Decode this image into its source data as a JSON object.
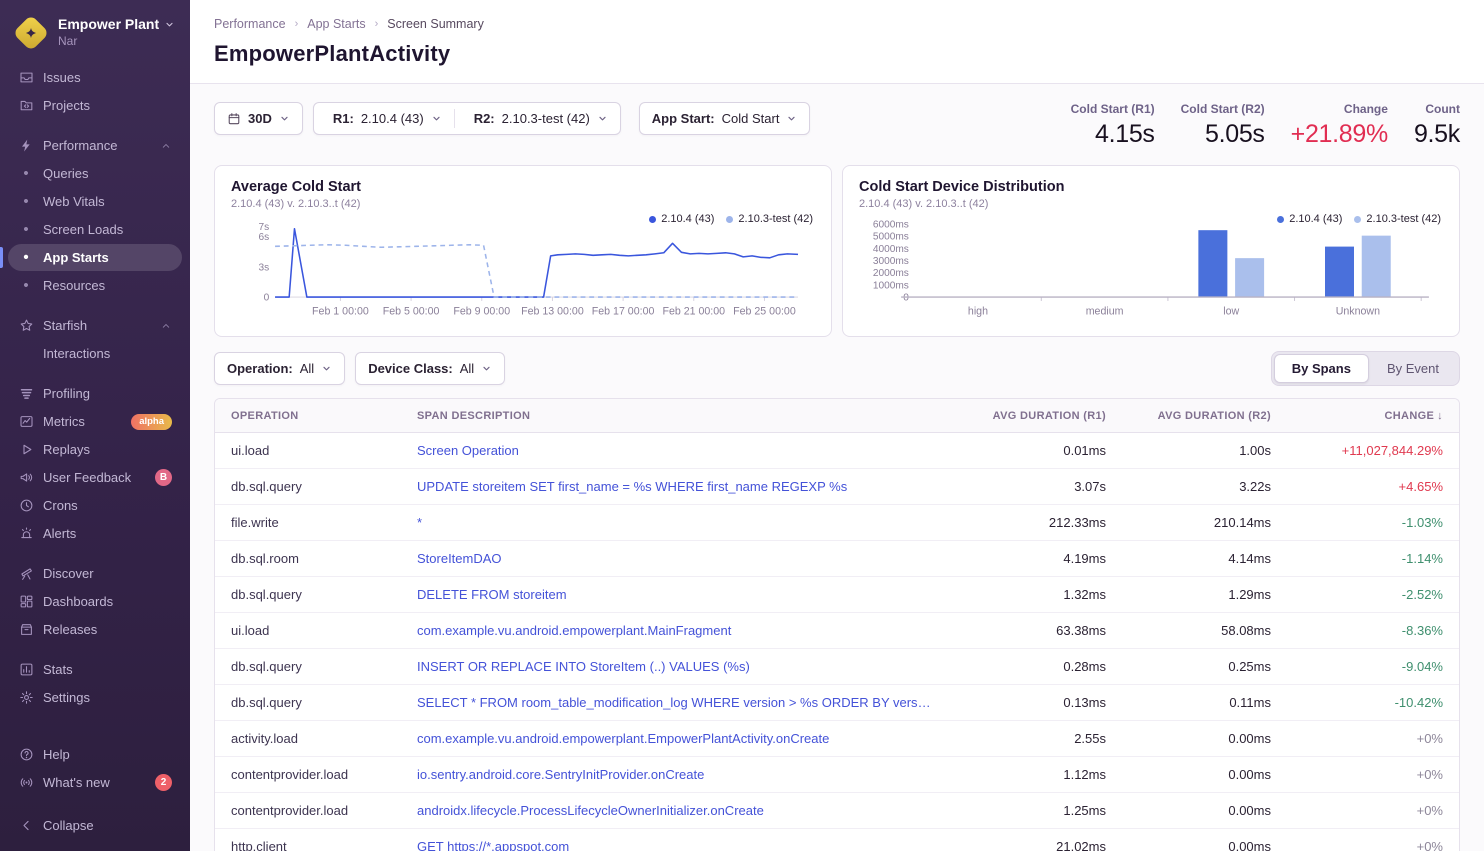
{
  "sidebar": {
    "org_name": "Empower Plant",
    "project_name": "Nar",
    "sections": [
      {
        "items": [
          {
            "id": "issues",
            "label": "Issues",
            "icon": "issues"
          },
          {
            "id": "projects",
            "label": "Projects",
            "icon": "projects"
          }
        ]
      },
      {
        "items": [
          {
            "id": "performance",
            "label": "Performance",
            "icon": "lightning",
            "chevron": "up"
          },
          {
            "id": "queries",
            "label": "Queries",
            "bullet": true
          },
          {
            "id": "web-vitals",
            "label": "Web Vitals",
            "bullet": true
          },
          {
            "id": "screen-loads",
            "label": "Screen Loads",
            "bullet": true
          },
          {
            "id": "app-starts",
            "label": "App Starts",
            "bullet": true,
            "active": true
          },
          {
            "id": "resources",
            "label": "Resources",
            "bullet": true
          }
        ]
      },
      {
        "items": [
          {
            "id": "starfish",
            "label": "Starfish",
            "icon": "star",
            "chevron": "up"
          },
          {
            "id": "interactions",
            "label": "Interactions",
            "indent": true
          }
        ]
      },
      {
        "items": [
          {
            "id": "profiling",
            "label": "Profiling",
            "icon": "profiling"
          },
          {
            "id": "metrics",
            "label": "Metrics",
            "icon": "metrics",
            "badge": {
              "text": "alpha",
              "type": "alpha"
            }
          },
          {
            "id": "replays",
            "label": "Replays",
            "icon": "play"
          },
          {
            "id": "user-feedback",
            "label": "User Feedback",
            "icon": "megaphone",
            "badge": {
              "text": "B",
              "type": "pink"
            }
          },
          {
            "id": "crons",
            "label": "Crons",
            "icon": "clock"
          },
          {
            "id": "alerts",
            "label": "Alerts",
            "icon": "siren"
          }
        ]
      },
      {
        "items": [
          {
            "id": "discover",
            "label": "Discover",
            "icon": "telescope"
          },
          {
            "id": "dashboards",
            "label": "Dashboards",
            "icon": "dashboards"
          },
          {
            "id": "releases",
            "label": "Releases",
            "icon": "releases"
          }
        ]
      },
      {
        "items": [
          {
            "id": "stats",
            "label": "Stats",
            "icon": "stats"
          },
          {
            "id": "settings",
            "label": "Settings",
            "icon": "gear"
          }
        ]
      }
    ],
    "footer_items": [
      {
        "id": "help",
        "label": "Help",
        "icon": "help"
      },
      {
        "id": "whats-new",
        "label": "What's new",
        "icon": "broadcast",
        "badge": {
          "text": "2",
          "type": "red"
        }
      },
      {
        "id": "collapse",
        "label": "Collapse",
        "icon": "chevron-left",
        "gap_before": true
      }
    ]
  },
  "breadcrumb": [
    "Performance",
    "App Starts",
    "Screen Summary"
  ],
  "page_title": "EmpowerPlantActivity",
  "filters": {
    "date_range": {
      "label": "30D"
    },
    "release1": {
      "label": "R1:",
      "value": "2.10.4 (43)"
    },
    "release2": {
      "label": "R2:",
      "value": "2.10.3-test (42)"
    },
    "app_start": {
      "label": "App Start:",
      "value": "Cold Start"
    },
    "operation": {
      "label": "Operation:",
      "value": "All"
    },
    "device_class": {
      "label": "Device Class:",
      "value": "All"
    }
  },
  "stats": [
    {
      "label": "Cold Start (R1)",
      "value": "4.15s",
      "color": "default"
    },
    {
      "label": "Cold Start (R2)",
      "value": "5.05s",
      "color": "default"
    },
    {
      "label": "Change",
      "value": "+21.89%",
      "color": "red"
    },
    {
      "label": "Count",
      "value": "9.5k",
      "color": "default"
    }
  ],
  "toggle": {
    "options": [
      "By Spans",
      "By Event"
    ],
    "active": 0
  },
  "chart_data": [
    {
      "type": "line",
      "title": "Average Cold Start",
      "subtitle": "2.10.4 (43) v. 2.10.3..t (42)",
      "legend": [
        {
          "name": "2.10.4 (43)",
          "color": "#3a56dd"
        },
        {
          "name": "2.10.3-test (42)",
          "color": "#9db4ea"
        }
      ],
      "ymax": 7.5,
      "yticks": [
        {
          "v": 0,
          "label": "0"
        },
        {
          "v": 3,
          "label": "3s"
        },
        {
          "v": 6,
          "label": "6s"
        },
        {
          "v": 7,
          "label": "7s"
        }
      ],
      "xdomain": [
        0,
        29.6
      ],
      "xticks": [
        {
          "v": 3.7,
          "label": "Feb 1 00:00"
        },
        {
          "v": 7.7,
          "label": "Feb 5 00:00"
        },
        {
          "v": 11.7,
          "label": "Feb 9 00:00"
        },
        {
          "v": 15.7,
          "label": "Feb 13 00:00"
        },
        {
          "v": 19.7,
          "label": "Feb 17 00:00"
        },
        {
          "v": 23.7,
          "label": "Feb 21 00:00"
        },
        {
          "v": 27.7,
          "label": "Feb 25 00:00"
        }
      ],
      "series": [
        {
          "name": "2.10.4 (43)",
          "style": "solid",
          "color": "#3a56dd",
          "points": [
            [
              0,
              0
            ],
            [
              0.8,
              0
            ],
            [
              1.1,
              6.8
            ],
            [
              1.8,
              0
            ],
            [
              15.2,
              0
            ],
            [
              15.6,
              4.1
            ],
            [
              16,
              4.2
            ],
            [
              16.5,
              4.25
            ],
            [
              17,
              4.3
            ],
            [
              17.5,
              4.25
            ],
            [
              18,
              4.15
            ],
            [
              18.5,
              4.2
            ],
            [
              19,
              4.25
            ],
            [
              19.5,
              4.15
            ],
            [
              20,
              4.1
            ],
            [
              20.5,
              4.15
            ],
            [
              21,
              4.2
            ],
            [
              21.5,
              4.3
            ],
            [
              22,
              4.4
            ],
            [
              22.5,
              5.35
            ],
            [
              23,
              4.45
            ],
            [
              23.5,
              4.3
            ],
            [
              24,
              4.35
            ],
            [
              24.5,
              4.3
            ],
            [
              25,
              4.35
            ],
            [
              25.5,
              4.4
            ],
            [
              26,
              4.3
            ],
            [
              26.5,
              4.0
            ],
            [
              27,
              4.1
            ],
            [
              27.5,
              3.95
            ],
            [
              28,
              3.9
            ],
            [
              28.5,
              4.2
            ],
            [
              29,
              4.3
            ],
            [
              29.6,
              4.25
            ]
          ]
        },
        {
          "name": "2.10.3-test (42)",
          "style": "dashed",
          "color": "#9db4ea",
          "points": [
            [
              0,
              5.05
            ],
            [
              1,
              5.1
            ],
            [
              2,
              5.15
            ],
            [
              3,
              5.2
            ],
            [
              4,
              5.15
            ],
            [
              5,
              5.05
            ],
            [
              6,
              4.95
            ],
            [
              7,
              5.0
            ],
            [
              8,
              5.05
            ],
            [
              9,
              5.1
            ],
            [
              10,
              5.15
            ],
            [
              11,
              5.2
            ],
            [
              11.8,
              5.15
            ],
            [
              12.4,
              0
            ],
            [
              29.6,
              0
            ]
          ]
        }
      ]
    },
    {
      "type": "bar",
      "title": "Cold Start Device Distribution",
      "subtitle": "2.10.4 (43) v. 2.10.3..t (42)",
      "legend": [
        {
          "name": "2.10.4 (43)",
          "color": "#4a70db"
        },
        {
          "name": "2.10.3-test (42)",
          "color": "#aabfec"
        }
      ],
      "ymax": 6200,
      "yticks": [
        {
          "v": 0,
          "label": "0"
        },
        {
          "v": 1000,
          "label": "1000ms"
        },
        {
          "v": 2000,
          "label": "2000ms"
        },
        {
          "v": 3000,
          "label": "3000ms"
        },
        {
          "v": 4000,
          "label": "4000ms"
        },
        {
          "v": 5000,
          "label": "5000ms"
        },
        {
          "v": 6000,
          "label": "6000ms"
        }
      ],
      "categories": [
        "high",
        "medium",
        "low",
        "Unknown"
      ],
      "series": [
        {
          "name": "2.10.4 (43)",
          "color": "#4a70db",
          "values": [
            0,
            0,
            5500,
            4150
          ]
        },
        {
          "name": "2.10.3-test (42)",
          "color": "#aabfec",
          "values": [
            0,
            0,
            3200,
            5050
          ]
        }
      ]
    }
  ],
  "table": {
    "columns": [
      "OPERATION",
      "SPAN DESCRIPTION",
      "AVG DURATION (R1)",
      "AVG DURATION (R2)",
      "CHANGE"
    ],
    "sort_indicator": "↓",
    "rows": [
      {
        "operation": "ui.load",
        "description": "Screen Operation",
        "r1": "0.01ms",
        "r2": "1.00s",
        "change": "+11,027,844.29%",
        "change_color": "red"
      },
      {
        "operation": "db.sql.query",
        "description": "UPDATE storeitem SET first_name = %s WHERE first_name REGEXP %s",
        "r1": "3.07s",
        "r2": "3.22s",
        "change": "+4.65%",
        "change_color": "red"
      },
      {
        "operation": "file.write",
        "description": "*",
        "r1": "212.33ms",
        "r2": "210.14ms",
        "change": "-1.03%",
        "change_color": "green"
      },
      {
        "operation": "db.sql.room",
        "description": "StoreItemDAO",
        "r1": "4.19ms",
        "r2": "4.14ms",
        "change": "-1.14%",
        "change_color": "green"
      },
      {
        "operation": "db.sql.query",
        "description": "DELETE FROM storeitem",
        "r1": "1.32ms",
        "r2": "1.29ms",
        "change": "-2.52%",
        "change_color": "green"
      },
      {
        "operation": "ui.load",
        "description": "com.example.vu.android.empowerplant.MainFragment",
        "r1": "63.38ms",
        "r2": "58.08ms",
        "change": "-8.36%",
        "change_color": "green"
      },
      {
        "operation": "db.sql.query",
        "description": "INSERT OR REPLACE INTO StoreItem (..) VALUES (%s)",
        "r1": "0.28ms",
        "r2": "0.25ms",
        "change": "-9.04%",
        "change_color": "green"
      },
      {
        "operation": "db.sql.query",
        "description": "SELECT * FROM room_table_modification_log WHERE version > %s ORDER BY version ASC",
        "r1": "0.13ms",
        "r2": "0.11ms",
        "change": "-10.42%",
        "change_color": "green"
      },
      {
        "operation": "activity.load",
        "description": "com.example.vu.android.empowerplant.EmpowerPlantActivity.onCreate",
        "r1": "2.55s",
        "r2": "0.00ms",
        "change": "+0%",
        "change_color": "gray"
      },
      {
        "operation": "contentprovider.load",
        "description": "io.sentry.android.core.SentryInitProvider.onCreate",
        "r1": "1.12ms",
        "r2": "0.00ms",
        "change": "+0%",
        "change_color": "gray"
      },
      {
        "operation": "contentprovider.load",
        "description": "androidx.lifecycle.ProcessLifecycleOwnerInitializer.onCreate",
        "r1": "1.25ms",
        "r2": "0.00ms",
        "change": "+0%",
        "change_color": "gray"
      },
      {
        "operation": "http.client",
        "description": "GET https://*.appspot.com",
        "r1": "21.02ms",
        "r2": "0.00ms",
        "change": "+0%",
        "change_color": "gray"
      }
    ]
  }
}
